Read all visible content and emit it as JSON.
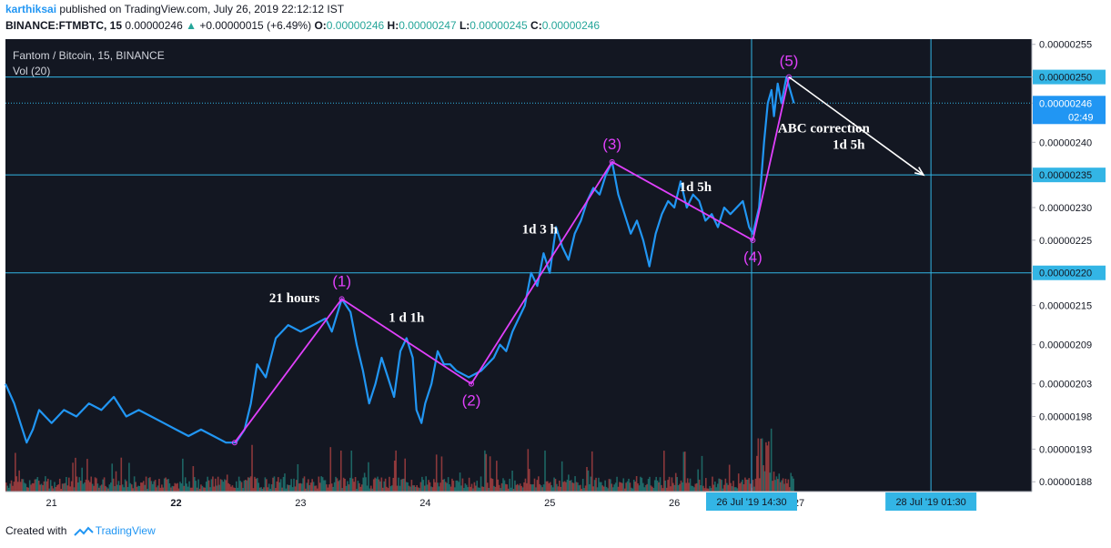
{
  "header": {
    "author": "karthiksai",
    "published": "published on TradingView.com, July 26, 2019 22:12:12 IST",
    "symbol_line": "BINANCE:FTMBTC, 15",
    "last": "0.00000246",
    "change": "+0.00000015 (+6.49%)",
    "o_label": "O:",
    "o_val": "0.00000246",
    "h_label": "H:",
    "h_val": "0.00000247",
    "l_label": "L:",
    "l_val": "0.00000245",
    "c_label": "C:",
    "c_val": "0.00000246"
  },
  "footer": {
    "created_with": "Created with",
    "brand": "TradingView"
  },
  "chart_data": {
    "type": "line",
    "title": "Fantom / Bitcoin, 15, BINANCE",
    "subtitle": "Vol (20)",
    "colors": {
      "background": "#131722",
      "price_line": "#2196f3",
      "wave_line": "#e040fb",
      "hline": "#33b5e5",
      "vol_up": "#26a69a",
      "vol_down": "#ef5350",
      "axis_text": "#131722"
    },
    "x_ticks": [
      {
        "label": "21",
        "t": 21.0
      },
      {
        "label": "22",
        "t": 22.0
      },
      {
        "label": "23",
        "t": 23.0
      },
      {
        "label": "24",
        "t": 24.0
      },
      {
        "label": "25",
        "t": 25.0
      },
      {
        "label": "26",
        "t": 26.0
      },
      {
        "label": "27",
        "t": 27.0
      }
    ],
    "x_range": [
      20.63,
      28.87
    ],
    "ylim": [
      1.865e-06,
      2.558e-06
    ],
    "y_ticks": [
      "0.00000255",
      "0.00000250",
      "0.00000246",
      "0.00000240",
      "0.00000235",
      "0.00000230",
      "0.00000225",
      "0.00000220",
      "0.00000215",
      "0.00000209",
      "0.00000203",
      "0.00000198",
      "0.00000193",
      "0.00000188"
    ],
    "hlines": [
      {
        "label": "0.00000250",
        "value": 2.5e-06
      },
      {
        "label": "0.00000235",
        "value": 2.35e-06
      },
      {
        "label": "0.00000220",
        "value": 2.2e-06
      }
    ],
    "last_price": {
      "label": "0.00000246",
      "value": 2.46e-06,
      "countdown": "02:49"
    },
    "vlines": [
      {
        "label": "26 Jul '19  14:30",
        "t": 26.62
      },
      {
        "label": "28 Jul '19  01:30",
        "t": 28.06
      }
    ],
    "price_series": [
      [
        20.63,
        2.03e-06
      ],
      [
        20.7,
        2e-06
      ],
      [
        20.75,
        1.97e-06
      ],
      [
        20.8,
        1.94e-06
      ],
      [
        20.85,
        1.96e-06
      ],
      [
        20.9,
        1.99e-06
      ],
      [
        21.0,
        1.97e-06
      ],
      [
        21.1,
        1.99e-06
      ],
      [
        21.2,
        1.98e-06
      ],
      [
        21.3,
        2e-06
      ],
      [
        21.4,
        1.99e-06
      ],
      [
        21.5,
        2.01e-06
      ],
      [
        21.6,
        1.98e-06
      ],
      [
        21.7,
        1.99e-06
      ],
      [
        21.8,
        1.98e-06
      ],
      [
        21.9,
        1.97e-06
      ],
      [
        22.0,
        1.96e-06
      ],
      [
        22.1,
        1.95e-06
      ],
      [
        22.2,
        1.96e-06
      ],
      [
        22.3,
        1.95e-06
      ],
      [
        22.4,
        1.94e-06
      ],
      [
        22.48,
        1.94e-06
      ],
      [
        22.55,
        1.96e-06
      ],
      [
        22.6,
        2e-06
      ],
      [
        22.65,
        2.06e-06
      ],
      [
        22.72,
        2.04e-06
      ],
      [
        22.8,
        2.1e-06
      ],
      [
        22.9,
        2.12e-06
      ],
      [
        23.0,
        2.11e-06
      ],
      [
        23.1,
        2.12e-06
      ],
      [
        23.2,
        2.13e-06
      ],
      [
        23.25,
        2.11e-06
      ],
      [
        23.33,
        2.16e-06
      ],
      [
        23.4,
        2.14e-06
      ],
      [
        23.45,
        2.09e-06
      ],
      [
        23.5,
        2.05e-06
      ],
      [
        23.55,
        2e-06
      ],
      [
        23.6,
        2.03e-06
      ],
      [
        23.65,
        2.07e-06
      ],
      [
        23.7,
        2.04e-06
      ],
      [
        23.75,
        2.01e-06
      ],
      [
        23.8,
        2.08e-06
      ],
      [
        23.85,
        2.1e-06
      ],
      [
        23.9,
        2.07e-06
      ],
      [
        23.93,
        1.99e-06
      ],
      [
        23.97,
        1.97e-06
      ],
      [
        24.0,
        2e-06
      ],
      [
        24.05,
        2.03e-06
      ],
      [
        24.1,
        2.08e-06
      ],
      [
        24.15,
        2.06e-06
      ],
      [
        24.2,
        2.06e-06
      ],
      [
        24.25,
        2.05e-06
      ],
      [
        24.35,
        2.04e-06
      ],
      [
        24.45,
        2.05e-06
      ],
      [
        24.55,
        2.07e-06
      ],
      [
        24.6,
        2.09e-06
      ],
      [
        24.65,
        2.08e-06
      ],
      [
        24.7,
        2.11e-06
      ],
      [
        24.75,
        2.13e-06
      ],
      [
        24.8,
        2.15e-06
      ],
      [
        24.85,
        2.2e-06
      ],
      [
        24.9,
        2.18e-06
      ],
      [
        24.95,
        2.23e-06
      ],
      [
        25.0,
        2.2e-06
      ],
      [
        25.05,
        2.27e-06
      ],
      [
        25.1,
        2.24e-06
      ],
      [
        25.15,
        2.22e-06
      ],
      [
        25.2,
        2.26e-06
      ],
      [
        25.25,
        2.28e-06
      ],
      [
        25.3,
        2.31e-06
      ],
      [
        25.35,
        2.33e-06
      ],
      [
        25.4,
        2.32e-06
      ],
      [
        25.45,
        2.35e-06
      ],
      [
        25.5,
        2.37e-06
      ],
      [
        25.55,
        2.32e-06
      ],
      [
        25.6,
        2.29e-06
      ],
      [
        25.65,
        2.26e-06
      ],
      [
        25.7,
        2.28e-06
      ],
      [
        25.75,
        2.25e-06
      ],
      [
        25.8,
        2.21e-06
      ],
      [
        25.85,
        2.26e-06
      ],
      [
        25.9,
        2.29e-06
      ],
      [
        25.95,
        2.31e-06
      ],
      [
        26.0,
        2.3e-06
      ],
      [
        26.05,
        2.34e-06
      ],
      [
        26.1,
        2.3e-06
      ],
      [
        26.15,
        2.32e-06
      ],
      [
        26.2,
        2.31e-06
      ],
      [
        26.25,
        2.28e-06
      ],
      [
        26.3,
        2.29e-06
      ],
      [
        26.35,
        2.27e-06
      ],
      [
        26.4,
        2.3e-06
      ],
      [
        26.45,
        2.29e-06
      ],
      [
        26.5,
        2.3e-06
      ],
      [
        26.55,
        2.31e-06
      ],
      [
        26.6,
        2.27e-06
      ],
      [
        26.63,
        2.26e-06
      ],
      [
        26.68,
        2.3e-06
      ],
      [
        26.72,
        2.4e-06
      ],
      [
        26.75,
        2.46e-06
      ],
      [
        26.78,
        2.48e-06
      ],
      [
        26.8,
        2.44e-06
      ],
      [
        26.83,
        2.49e-06
      ],
      [
        26.86,
        2.46e-06
      ],
      [
        26.9,
        2.5e-06
      ],
      [
        26.93,
        2.48e-06
      ],
      [
        26.96,
        2.46e-06
      ]
    ],
    "wave_points": [
      {
        "label": "",
        "t": 22.47,
        "value": 1.94e-06
      },
      {
        "label": "(1)",
        "t": 23.33,
        "value": 2.16e-06
      },
      {
        "label": "(2)",
        "t": 24.37,
        "value": 2.03e-06
      },
      {
        "label": "(3)",
        "t": 25.5,
        "value": 2.37e-06
      },
      {
        "label": "(4)",
        "t": 26.63,
        "value": 2.25e-06
      },
      {
        "label": "(5)",
        "t": 26.92,
        "value": 2.5e-06
      }
    ],
    "correction_arrow": {
      "from": [
        26.92,
        2.5e-06
      ],
      "to": [
        28.0,
        2.35e-06
      ]
    },
    "annotations": [
      {
        "text": "21 hours",
        "t": 22.95,
        "value": 2.155e-06
      },
      {
        "text": "1 d 1h",
        "t": 23.85,
        "value": 2.125e-06
      },
      {
        "text": "1d 3 h",
        "t": 24.92,
        "value": 2.26e-06
      },
      {
        "text": "1d 5h",
        "t": 26.17,
        "value": 2.325e-06
      },
      {
        "text": "ABC correction",
        "t": 27.2,
        "value": 2.415e-06
      },
      {
        "text": "1d 5h",
        "t": 27.4,
        "value": 2.39e-06
      }
    ]
  }
}
